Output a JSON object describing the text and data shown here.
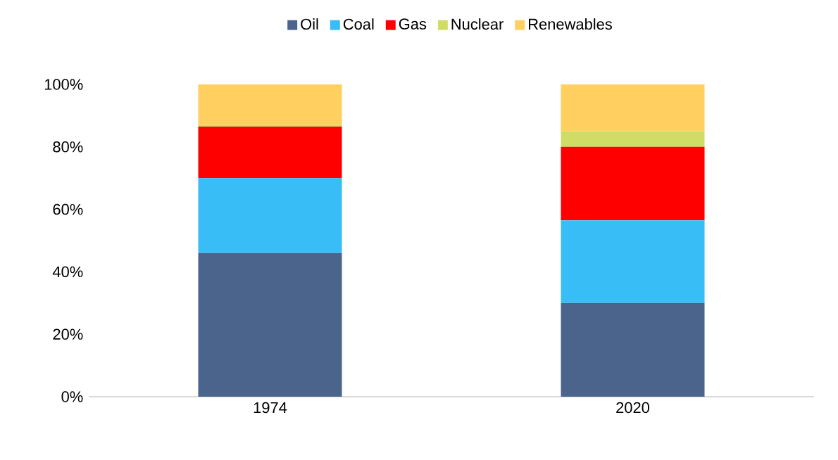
{
  "chart_data": {
    "type": "bar",
    "stacked": true,
    "categories": [
      "1974",
      "2020"
    ],
    "series": [
      {
        "name": "Oil",
        "color": "#4a648c",
        "values": [
          46,
          30
        ]
      },
      {
        "name": "Coal",
        "color": "#38bdf6",
        "values": [
          24,
          26.5
        ]
      },
      {
        "name": "Gas",
        "color": "#ff0000",
        "values": [
          16.5,
          23.5
        ]
      },
      {
        "name": "Nuclear",
        "color": "#cfdd66",
        "values": [
          0.5,
          5
        ]
      },
      {
        "name": "Renewables",
        "color": "#ffd060",
        "values": [
          13,
          15
        ]
      }
    ],
    "ylim": [
      0,
      100
    ],
    "yticks": [
      {
        "value": 0,
        "label": "0%"
      },
      {
        "value": 20,
        "label": "20%"
      },
      {
        "value": 40,
        "label": "40%"
      },
      {
        "value": 60,
        "label": "60%"
      },
      {
        "value": 80,
        "label": "80%"
      },
      {
        "value": 100,
        "label": "100%"
      }
    ],
    "grid": false,
    "legend": "top"
  }
}
